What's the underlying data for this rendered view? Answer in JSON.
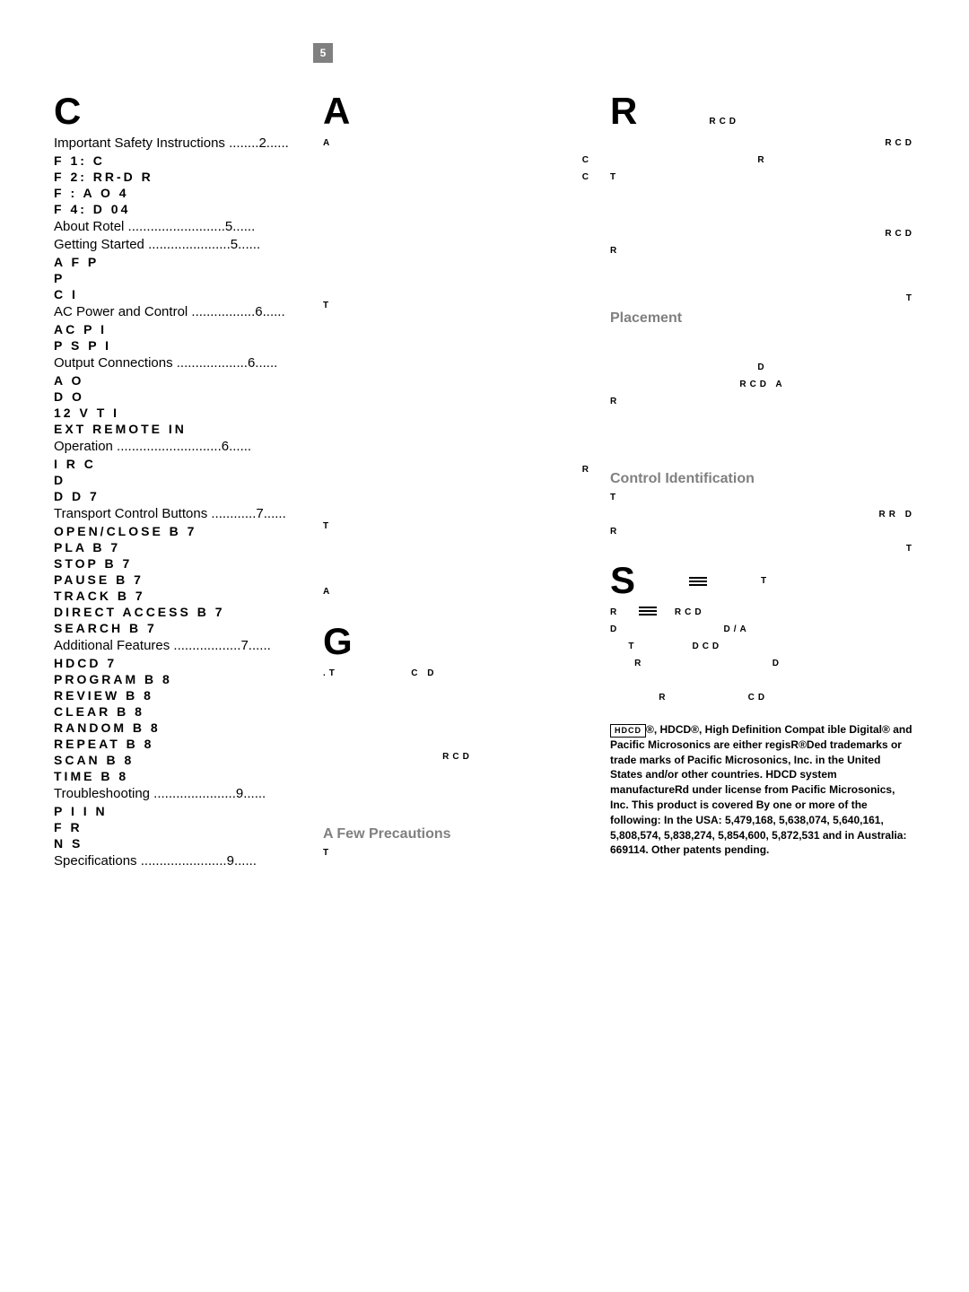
{
  "page_number": "5",
  "col_left": {
    "big_letter": "C",
    "toc": [
      {
        "type": "dotted",
        "label": "Important Safety Instructions",
        "page": "2"
      },
      {
        "type": "sub",
        "text": "F          1: C"
      },
      {
        "type": "sub",
        "text": "F          2: RR-D      R"
      },
      {
        "type": "sub",
        "text": "F            : A            O 4"
      },
      {
        "type": "sub",
        "text": "F          4: D            04"
      },
      {
        "type": "dotted",
        "label": "About Rotel",
        "page": "5"
      },
      {
        "type": "dotted",
        "label": "Getting Started",
        "page": "5"
      },
      {
        "type": "sub",
        "text": "A F      P"
      },
      {
        "type": "sub",
        "text": "P"
      },
      {
        "type": "sub",
        "text": "C            I"
      },
      {
        "type": "dotted",
        "label": "AC Power and Control",
        "page": "6"
      },
      {
        "type": "sub",
        "text": "AC P           I"
      },
      {
        "type": "sub",
        "text": "P        S        P          I"
      },
      {
        "type": "dotted",
        "label": "Output Connections",
        "page": "6"
      },
      {
        "type": "sub",
        "text": "A             O"
      },
      {
        "type": "sub",
        "text": "D             O"
      },
      {
        "type": "sub",
        "text": "12 V       T             I"
      },
      {
        "type": "sub",
        "text": "EXT REMOTE IN"
      },
      {
        "type": "dotted",
        "label": "Operation",
        "page": "6"
      },
      {
        "type": "sub",
        "text": "I               R            C"
      },
      {
        "type": "sub",
        "text": "D"
      },
      {
        "type": "sub",
        "text": "D        D                    7"
      },
      {
        "type": "dotted",
        "label": "Transport Control Buttons",
        "page": "7"
      },
      {
        "type": "sub",
        "text": "OPEN/CLOSE B            7"
      },
      {
        "type": "sub",
        "text": "PLA    B                   7"
      },
      {
        "type": "sub",
        "text": "STOP B                    7"
      },
      {
        "type": "sub",
        "text": "PAUSE B                   7"
      },
      {
        "type": "sub",
        "text": "TRACK B                   7"
      },
      {
        "type": "sub",
        "text": "DIRECT ACCESS B        7"
      },
      {
        "type": "sub",
        "text": "SEARCH B                 7"
      },
      {
        "type": "dotted",
        "label": "Additional Features",
        "page": "7"
      },
      {
        "type": "sub",
        "text": "HDCD                      7"
      },
      {
        "type": "sub",
        "text": "PROGRAM B               8"
      },
      {
        "type": "sub",
        "text": "REVIEW B                 8"
      },
      {
        "type": "sub",
        "text": "CLEAR B                   8"
      },
      {
        "type": "sub",
        "text": "RANDOM B                8"
      },
      {
        "type": "sub",
        "text": "REPEAT B                  8"
      },
      {
        "type": "sub",
        "text": "SCAN B                    8"
      },
      {
        "type": "sub",
        "text": "TIME B                     8"
      },
      {
        "type": "dotted",
        "label": "Troubleshooting",
        "page": "9"
      },
      {
        "type": "sub",
        "text": "P          I                  I    N"
      },
      {
        "type": "sub",
        "text": "F       R"
      },
      {
        "type": "sub",
        "text": "N    S"
      },
      {
        "type": "dotted",
        "label": "Specifications",
        "page": "9"
      }
    ]
  },
  "col_mid": {
    "big_letter_top": "A",
    "small_a": "A",
    "c_right": "C",
    "c_right2": "C",
    "body1": "T",
    "r_line": "R",
    "t_line": "T",
    "a_line": "A",
    "big_g": "G",
    "t_after_g": ".T",
    "line_cd": "C          D",
    "rcd": "RCD",
    "precautions_head": "A Few Precautions",
    "t_small": "T"
  },
  "col_right": {
    "big_r": "R",
    "rcd1": "RCD",
    "rcd2": "RCD",
    "r_line": "R",
    "t_line": "T",
    "r_line2": "R",
    "rcd3": "RCD",
    "t_line2": "T",
    "placement_head": "Placement",
    "d_line": "D",
    "rcd_a": "RCD           A",
    "r_line3": "R",
    "control_head": "Control Identification",
    "t_line3": "T",
    "rr_d": "RR   D",
    "r_line4": "R",
    "t_line4": "T",
    "big_s": "S",
    "bars_t": "T",
    "r_bars": "R",
    "rcd4": "RCD",
    "d_line2": "D",
    "da": "D/A",
    "t_line5": "T",
    "dcd": "DCD",
    "r_line5": "R",
    "d_line3": "D",
    "r_line6": "R",
    "cd": "CD",
    "legal": ", HDCD®, High Definition Compat ible Digital® and Pacific Microsonics     are either regisR®Ded trademarks or trade marks of Pacific Microsonics, Inc. in the United States and/or other countries. HDCD system manufactureRd under license from Pacific Microsonics, Inc. This product is covered By one or more of the following: In the USA: 5,479,168, 5,638,074, 5,640,161, 5,808,574, 5,838,274, 5,854,600, 5,872,531 and in Australia: 669114.  Other patents pending."
  }
}
